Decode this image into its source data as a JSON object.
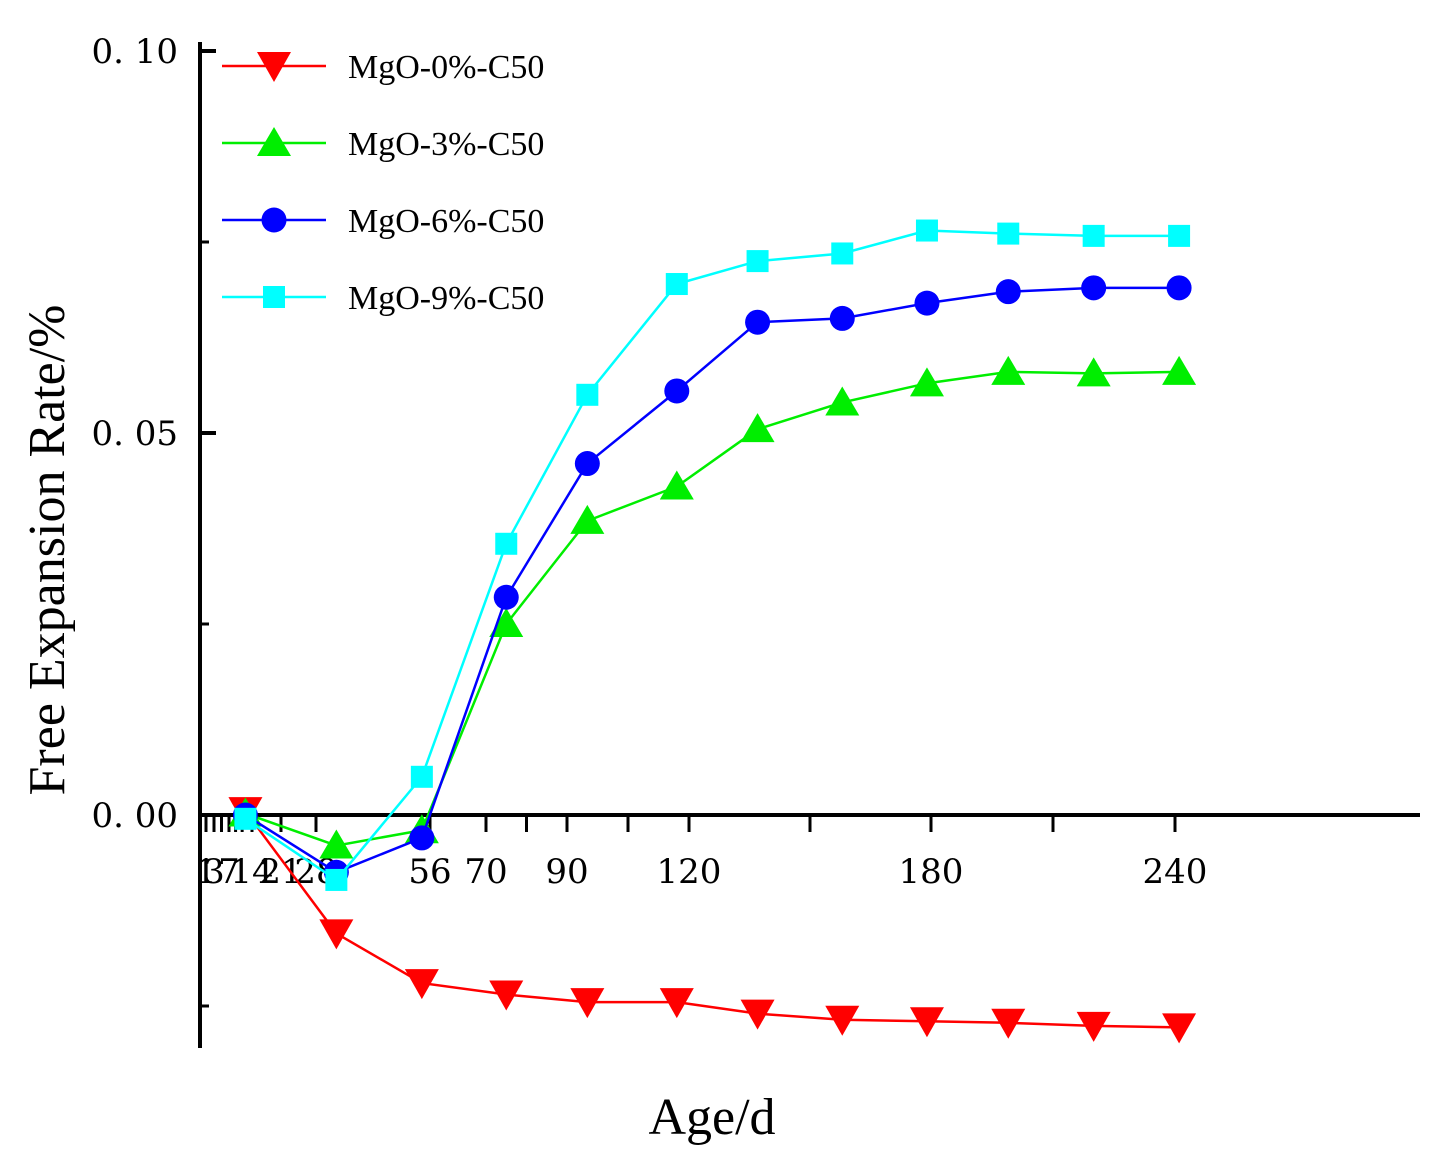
{
  "chart_data": {
    "type": "line",
    "title": "",
    "xlabel": "Age/d",
    "ylabel": "Free Expansion Rate/%",
    "xlim": [
      0,
      300
    ],
    "ylim": [
      -0.03,
      0.1
    ],
    "grid": false,
    "legend_position": "top-left",
    "y_tick_labels": [
      {
        "value": 0.1,
        "label": "0. 10"
      },
      {
        "value": 0.05,
        "label": "0. 05"
      },
      {
        "value": 0.0,
        "label": "0. 00"
      }
    ],
    "y_minor_ticks": [
      0.075,
      0.025,
      -0.025
    ],
    "x_tick_labels": [
      {
        "value": 1,
        "label": "1"
      },
      {
        "value": 3,
        "label": "3"
      },
      {
        "value": 7,
        "label": "7"
      },
      {
        "value": 14,
        "label": "14"
      },
      {
        "value": 21,
        "label": "21"
      },
      {
        "value": 28,
        "label": "28"
      },
      {
        "value": 56,
        "label": "56"
      },
      {
        "value": 70,
        "label": "70"
      },
      {
        "value": 90,
        "label": "90"
      },
      {
        "value": 120,
        "label": "120"
      },
      {
        "value": 180,
        "label": "180"
      },
      {
        "value": 240,
        "label": "240"
      }
    ],
    "x_minor_ticks": [
      1,
      3,
      5,
      7,
      9,
      11,
      14,
      21,
      28,
      56,
      70,
      80,
      90,
      105,
      120,
      150,
      180,
      210,
      240
    ],
    "x": [
      12,
      33,
      54,
      75,
      95,
      117,
      137,
      158,
      179,
      199,
      220,
      241
    ],
    "series": [
      {
        "name": "MgO-0%-C50",
        "color": "#ff0000",
        "marker": "triangle-down",
        "values": [
          0.0005,
          -0.0155,
          -0.022,
          -0.0235,
          -0.0245,
          -0.0245,
          -0.026,
          -0.0268,
          -0.027,
          -0.0272,
          -0.0276,
          -0.0278
        ]
      },
      {
        "name": "MgO-3%-C50",
        "color": "#00ee00",
        "marker": "triangle-up",
        "values": [
          0.0002,
          -0.004,
          -0.002,
          0.025,
          0.0385,
          0.043,
          0.0505,
          0.054,
          0.0565,
          0.058,
          0.0578,
          0.058
        ]
      },
      {
        "name": "MgO-6%-C50",
        "color": "#0000ff",
        "marker": "circle",
        "values": [
          0.0,
          -0.0075,
          -0.003,
          0.0285,
          0.046,
          0.0555,
          0.0645,
          0.065,
          0.067,
          0.0685,
          0.069,
          0.069
        ]
      },
      {
        "name": "MgO-9%-C50",
        "color": "#00ffff",
        "marker": "square",
        "values": [
          -0.0005,
          -0.0085,
          0.005,
          0.0355,
          0.055,
          0.0695,
          0.0725,
          0.0735,
          0.0765,
          0.0761,
          0.0758,
          0.0758
        ]
      }
    ]
  }
}
